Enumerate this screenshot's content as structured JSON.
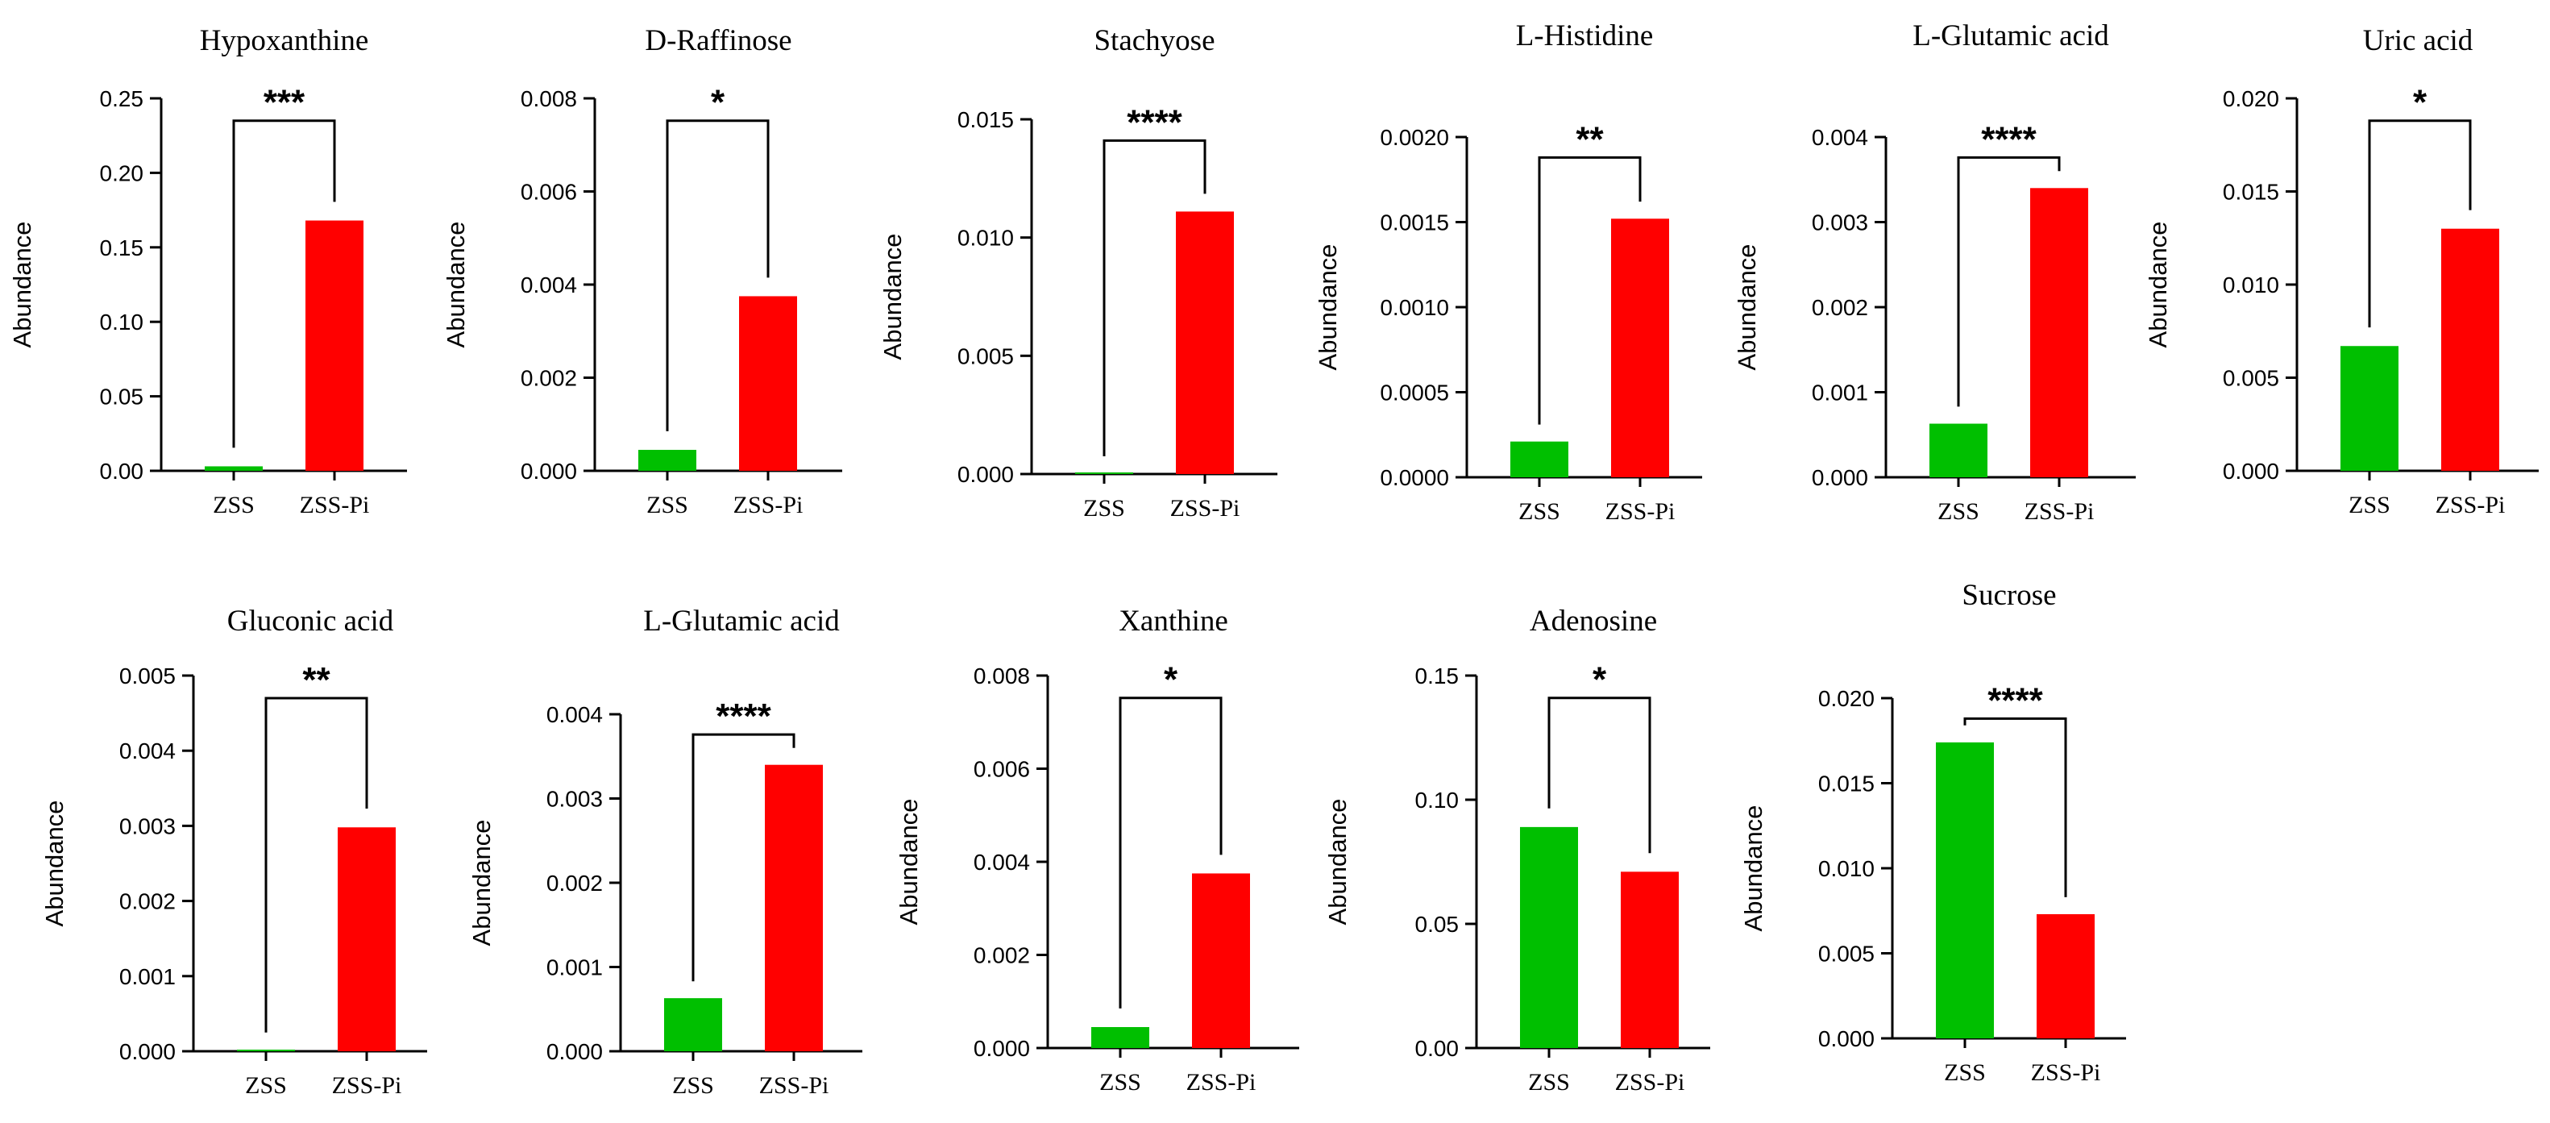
{
  "figure": {
    "group_colors": {
      "ZSS": "#00bf00",
      "ZSS-Pi": "#ff0000"
    }
  },
  "chart_data": [
    {
      "type": "bar",
      "title": "Hypoxanthine",
      "ylabel": "Abundance",
      "categories": [
        "ZSS",
        "ZSS-Pi"
      ],
      "values": [
        0.003,
        0.168
      ],
      "ylim": [
        0,
        0.25
      ],
      "yticks": [
        "0.00",
        "0.05",
        "0.10",
        "0.15",
        "0.20",
        "0.25"
      ],
      "significance": "***"
    },
    {
      "type": "bar",
      "title": "D-Raffinose",
      "ylabel": "Abundance",
      "categories": [
        "ZSS",
        "ZSS-Pi"
      ],
      "values": [
        0.00045,
        0.00375
      ],
      "ylim": [
        0,
        0.008
      ],
      "yticks": [
        "0.000",
        "0.002",
        "0.004",
        "0.006",
        "0.008"
      ],
      "significance": "*"
    },
    {
      "type": "bar",
      "title": "Stachyose",
      "ylabel": "Abundance",
      "categories": [
        "ZSS",
        "ZSS-Pi"
      ],
      "values": [
        0.0,
        0.0111
      ],
      "ylim": [
        0,
        0.015
      ],
      "yticks": [
        "0.000",
        "0.005",
        "0.010",
        "0.015"
      ],
      "significance": "****"
    },
    {
      "type": "bar",
      "title": "L-Histidine",
      "ylabel": "Abundance",
      "categories": [
        "ZSS",
        "ZSS-Pi"
      ],
      "values": [
        0.00021,
        0.00152
      ],
      "ylim": [
        0,
        0.002
      ],
      "yticks": [
        "0.0000",
        "0.0005",
        "0.0010",
        "0.0015",
        "0.0020"
      ],
      "significance": "**"
    },
    {
      "type": "bar",
      "title": "L-Glutamic acid",
      "ylabel": "Abundance",
      "categories": [
        "ZSS",
        "ZSS-Pi"
      ],
      "values": [
        0.00063,
        0.0034
      ],
      "ylim": [
        0,
        0.004
      ],
      "yticks": [
        "0.000",
        "0.001",
        "0.002",
        "0.003",
        "0.004"
      ],
      "significance": "****"
    },
    {
      "type": "bar",
      "title": "Uric acid",
      "ylabel": "Abundance",
      "categories": [
        "ZSS",
        "ZSS-Pi"
      ],
      "values": [
        0.0067,
        0.013
      ],
      "ylim": [
        0,
        0.02
      ],
      "yticks": [
        "0.000",
        "0.005",
        "0.010",
        "0.015",
        "0.020"
      ],
      "significance": "*"
    },
    {
      "type": "bar",
      "title": "Gluconic acid",
      "ylabel": "Abundance",
      "categories": [
        "ZSS",
        "ZSS-Pi"
      ],
      "values": [
        0.0,
        0.00298
      ],
      "ylim": [
        0,
        0.005
      ],
      "yticks": [
        "0.000",
        "0.001",
        "0.002",
        "0.003",
        "0.004",
        "0.005"
      ],
      "significance": "**"
    },
    {
      "type": "bar",
      "title": "L-Glutamic acid",
      "ylabel": "Abundance",
      "categories": [
        "ZSS",
        "ZSS-Pi"
      ],
      "values": [
        0.00063,
        0.0034
      ],
      "ylim": [
        0,
        0.004
      ],
      "yticks": [
        "0.000",
        "0.001",
        "0.002",
        "0.003",
        "0.004"
      ],
      "significance": "****"
    },
    {
      "type": "bar",
      "title": "Xanthine",
      "ylabel": "Abundance",
      "categories": [
        "ZSS",
        "ZSS-Pi"
      ],
      "values": [
        0.00045,
        0.00375
      ],
      "ylim": [
        0,
        0.008
      ],
      "yticks": [
        "0.000",
        "0.002",
        "0.004",
        "0.006",
        "0.008"
      ],
      "significance": "*"
    },
    {
      "type": "bar",
      "title": "Adenosine",
      "ylabel": "Abundance",
      "categories": [
        "ZSS",
        "ZSS-Pi"
      ],
      "values": [
        0.089,
        0.071
      ],
      "ylim": [
        0,
        0.15
      ],
      "yticks": [
        "0.00",
        "0.05",
        "0.10",
        "0.15"
      ],
      "significance": "*"
    },
    {
      "type": "bar",
      "title": "Sucrose",
      "ylabel": "Abundance",
      "categories": [
        "ZSS",
        "ZSS-Pi"
      ],
      "values": [
        0.0174,
        0.0073
      ],
      "ylim": [
        0,
        0.02
      ],
      "yticks": [
        "0.000",
        "0.005",
        "0.010",
        "0.015",
        "0.020"
      ],
      "significance": "****"
    }
  ]
}
